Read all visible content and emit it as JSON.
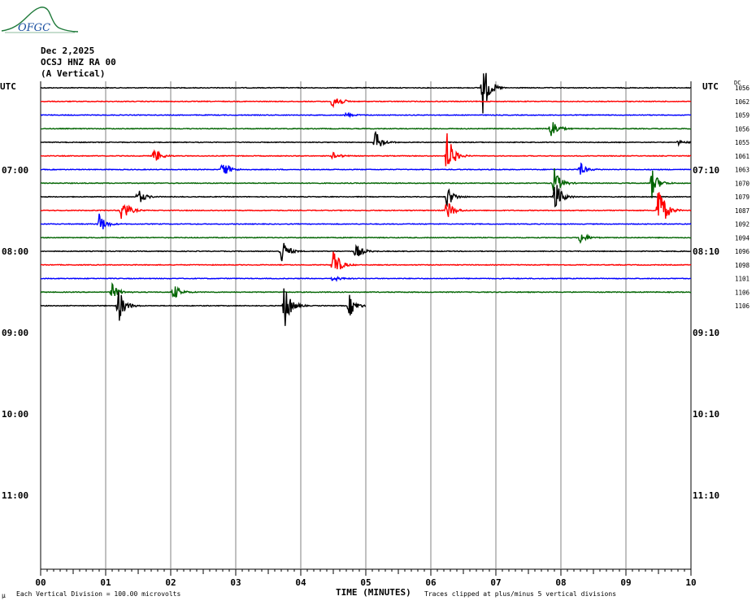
{
  "header": {
    "logo_text": "OFGC",
    "date": "Dec 2,2025",
    "station": "OCSJ HNZ RA 00",
    "component": "(A Vertical)"
  },
  "labels": {
    "utc_left": "UTC",
    "utc_right": "UTC",
    "dc": "DC",
    "xlabel": "TIME (MINUTES)",
    "footer_left": "Each Vertical Division =  100.00 microvolts",
    "footer_right": "Traces clipped at plus/minus 5 vertical divisions"
  },
  "chart_data": {
    "type": "line",
    "title": "OCSJ HNZ RA 00",
    "xlabel": "TIME (MINUTES)",
    "x_ticks": [
      "00",
      "01",
      "02",
      "03",
      "04",
      "05",
      "06",
      "07",
      "08",
      "09",
      "10"
    ],
    "xlim": [
      0,
      10
    ],
    "time_labels_left": [
      "07:00",
      "08:00",
      "09:00",
      "10:00",
      "11:00"
    ],
    "time_labels_right": [
      "07:10",
      "08:10",
      "09:10",
      "10:10",
      "11:10"
    ],
    "trace_colors": [
      "#000000",
      "#ff0000",
      "#0000ff",
      "#006400"
    ],
    "dc_offsets": [
      "1056",
      "1062",
      "1059",
      "1056",
      "1055",
      "1061",
      "1063",
      "1070",
      "1079",
      "1087",
      "1092",
      "1094",
      "1096",
      "1098",
      "1101",
      "1106",
      "1106"
    ],
    "rows_per_hour": 6,
    "last_row_minutes": 5,
    "events": [
      {
        "row": 0,
        "minute": 6.8,
        "amplitude": 35
      },
      {
        "row": 1,
        "minute": 4.5,
        "amplitude": 14
      },
      {
        "row": 2,
        "minute": 4.7,
        "amplitude": 3
      },
      {
        "row": 3,
        "minute": 7.85,
        "amplitude": 14
      },
      {
        "row": 4,
        "minute": 5.15,
        "amplitude": 14
      },
      {
        "row": 4,
        "minute": 9.8,
        "amplitude": 3
      },
      {
        "row": 5,
        "minute": 1.75,
        "amplitude": 10
      },
      {
        "row": 5,
        "minute": 4.5,
        "amplitude": 5
      },
      {
        "row": 5,
        "minute": 6.25,
        "amplitude": 30
      },
      {
        "row": 6,
        "minute": 2.8,
        "amplitude": 12
      },
      {
        "row": 6,
        "minute": 8.3,
        "amplitude": 8
      },
      {
        "row": 7,
        "minute": 7.9,
        "amplitude": 18
      },
      {
        "row": 7,
        "minute": 9.4,
        "amplitude": 18
      },
      {
        "row": 8,
        "minute": 1.5,
        "amplitude": 10
      },
      {
        "row": 8,
        "minute": 6.25,
        "amplitude": 14
      },
      {
        "row": 8,
        "minute": 7.9,
        "amplitude": 25
      },
      {
        "row": 9,
        "minute": 1.25,
        "amplitude": 18
      },
      {
        "row": 9,
        "minute": 6.25,
        "amplitude": 14
      },
      {
        "row": 9,
        "minute": 9.5,
        "amplitude": 40
      },
      {
        "row": 10,
        "minute": 0.9,
        "amplitude": 14
      },
      {
        "row": 11,
        "minute": 8.3,
        "amplitude": 8
      },
      {
        "row": 12,
        "minute": 3.7,
        "amplitude": 18
      },
      {
        "row": 12,
        "minute": 4.85,
        "amplitude": 10
      },
      {
        "row": 13,
        "minute": 4.5,
        "amplitude": 22
      },
      {
        "row": 14,
        "minute": 4.5,
        "amplitude": 4
      },
      {
        "row": 15,
        "minute": 2.05,
        "amplitude": 10
      },
      {
        "row": 15,
        "minute": 1.1,
        "amplitude": 10
      },
      {
        "row": 16,
        "minute": 1.2,
        "amplitude": 22
      },
      {
        "row": 16,
        "minute": 3.75,
        "amplitude": 30
      },
      {
        "row": 16,
        "minute": 4.75,
        "amplitude": 14
      }
    ]
  }
}
